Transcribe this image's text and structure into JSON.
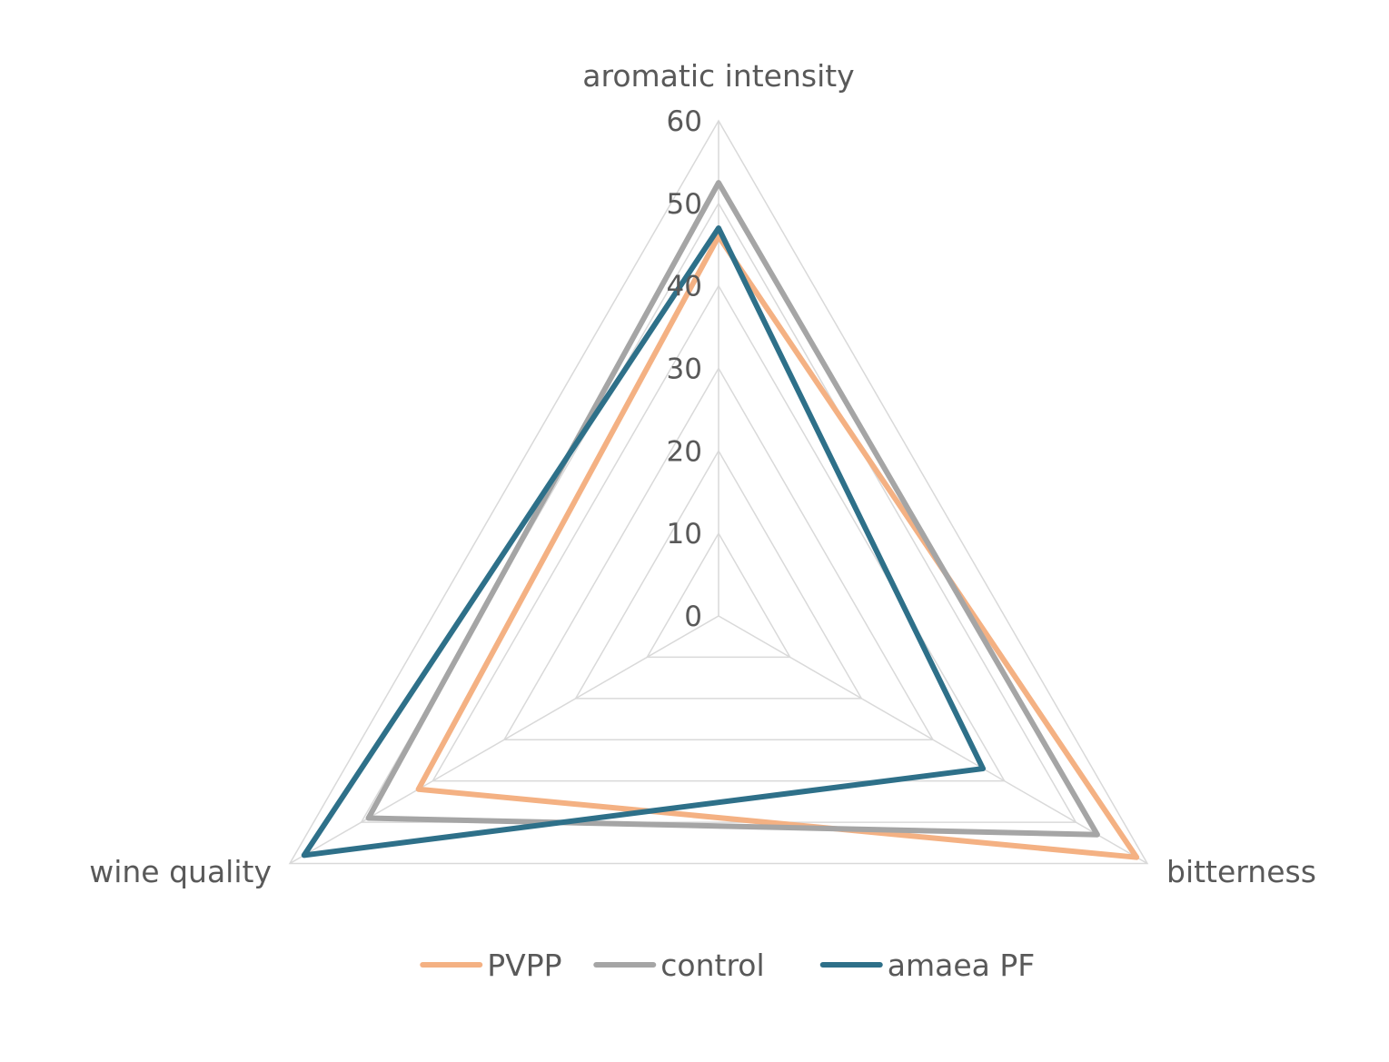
{
  "chart_data": {
    "type": "radar",
    "axes": [
      "aromatic intensity",
      "bitterness",
      "wine quality"
    ],
    "rlim": [
      0,
      60
    ],
    "ticks": [
      "0",
      "10",
      "20",
      "30",
      "40",
      "50",
      "60"
    ],
    "tick_values": [
      0,
      10,
      20,
      30,
      40,
      50,
      60
    ],
    "grid": true,
    "legend_position": "bottom",
    "series": [
      {
        "name": "PVPP",
        "color": "#f4b183",
        "values": [
          46,
          58.5,
          42
        ]
      },
      {
        "name": "control",
        "color": "#a5a5a5",
        "values": [
          52.5,
          53,
          49
        ]
      },
      {
        "name": "amaea PF",
        "color": "#2e7089",
        "values": [
          47,
          37,
          58
        ]
      }
    ]
  }
}
